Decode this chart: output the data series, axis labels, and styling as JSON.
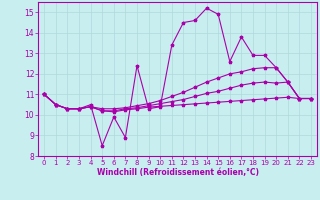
{
  "background_color": "#c8eef0",
  "grid_color": "#b0d8da",
  "line_color": "#aa00aa",
  "xlabel": "Windchill (Refroidissement éolien,°C)",
  "xlabel_color": "#aa00aa",
  "tick_color": "#aa00aa",
  "xlim": [
    -0.5,
    23.5
  ],
  "ylim": [
    8,
    15.5
  ],
  "yticks": [
    8,
    9,
    10,
    11,
    12,
    13,
    14,
    15
  ],
  "xticks": [
    0,
    1,
    2,
    3,
    4,
    5,
    6,
    7,
    8,
    9,
    10,
    11,
    12,
    13,
    14,
    15,
    16,
    17,
    18,
    19,
    20,
    21,
    22,
    23
  ],
  "lines": [
    {
      "x": [
        0,
        1,
        2,
        3,
        4,
        5,
        6,
        7,
        8,
        9,
        10,
        11,
        12,
        13,
        14,
        15,
        16,
        17,
        18,
        19,
        20,
        21,
        22,
        23
      ],
      "y": [
        11.0,
        10.5,
        10.3,
        10.3,
        10.5,
        8.5,
        9.9,
        8.9,
        12.4,
        10.3,
        10.4,
        13.4,
        14.5,
        14.6,
        15.2,
        14.9,
        12.6,
        13.8,
        12.9,
        12.9,
        12.3,
        11.6,
        10.8,
        10.8
      ]
    },
    {
      "x": [
        0,
        1,
        2,
        3,
        4,
        5,
        6,
        7,
        8,
        9,
        10,
        11,
        12,
        13,
        14,
        15,
        16,
        17,
        18,
        19,
        20,
        21,
        22,
        23
      ],
      "y": [
        11.0,
        10.5,
        10.3,
        10.3,
        10.4,
        10.3,
        10.3,
        10.35,
        10.45,
        10.55,
        10.7,
        10.9,
        11.1,
        11.35,
        11.6,
        11.8,
        12.0,
        12.1,
        12.25,
        12.3,
        12.3,
        11.6,
        10.8,
        10.8
      ]
    },
    {
      "x": [
        0,
        1,
        2,
        3,
        4,
        5,
        6,
        7,
        8,
        9,
        10,
        11,
        12,
        13,
        14,
        15,
        16,
        17,
        18,
        19,
        20,
        21,
        22,
        23
      ],
      "y": [
        11.0,
        10.5,
        10.3,
        10.3,
        10.4,
        10.2,
        10.2,
        10.3,
        10.35,
        10.45,
        10.55,
        10.65,
        10.75,
        10.9,
        11.05,
        11.15,
        11.3,
        11.45,
        11.55,
        11.6,
        11.55,
        11.6,
        10.8,
        10.8
      ]
    },
    {
      "x": [
        0,
        1,
        2,
        3,
        4,
        5,
        6,
        7,
        8,
        9,
        10,
        11,
        12,
        13,
        14,
        15,
        16,
        17,
        18,
        19,
        20,
        21,
        22,
        23
      ],
      "y": [
        11.0,
        10.5,
        10.3,
        10.3,
        10.4,
        10.2,
        10.15,
        10.25,
        10.3,
        10.38,
        10.42,
        10.46,
        10.5,
        10.54,
        10.58,
        10.62,
        10.66,
        10.7,
        10.74,
        10.78,
        10.82,
        10.86,
        10.8,
        10.8
      ]
    }
  ]
}
